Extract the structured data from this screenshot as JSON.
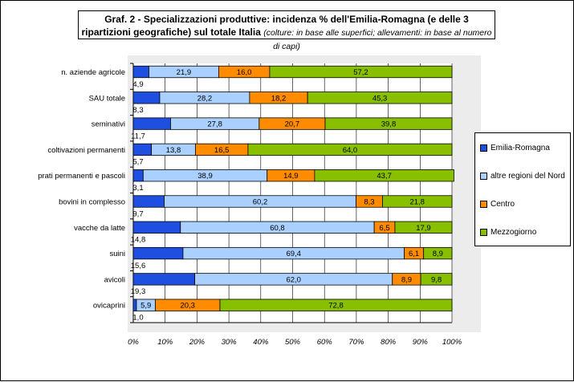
{
  "title": {
    "main": "Graf. 2 - Specializzazioni produttive: incidenza % dell'Emilia-Romagna (e delle 3 ripartizioni geografiche) sul totale Italia",
    "note": "(colture: in base alle superfici; allevamenti: in base al numero di capi)"
  },
  "colors": {
    "emilia_romagna": "#1f4fe0",
    "nord": "#a9d0ff",
    "centro": "#ff8c00",
    "mezzogiorno": "#88c000"
  },
  "chart_data": {
    "type": "bar",
    "orientation": "horizontal",
    "stacked": true,
    "categories": [
      "n. aziende agricole",
      "SAU totale",
      "seminativi",
      "coltivazioni permanenti",
      "prati permanenti e pascoli",
      "bovini in complesso",
      "vacche da latte",
      "suini",
      "avicoli",
      "ovicaprini"
    ],
    "category_bar_labels": [
      "4,9",
      "8,3",
      "11,7",
      "5,7",
      "3,1",
      "9,7",
      "14,8",
      "15,6",
      "19,3",
      "1,0"
    ],
    "series": [
      {
        "name": "Emilia-Romagna",
        "values": [
          4.9,
          8.3,
          11.7,
          5.7,
          3.1,
          9.7,
          14.8,
          15.6,
          19.3,
          1.0
        ]
      },
      {
        "name": "altre regioni del Nord",
        "values": [
          21.9,
          28.2,
          27.8,
          13.8,
          38.9,
          60.2,
          60.8,
          69.4,
          62.0,
          5.9
        ],
        "labels": [
          "21,9",
          "28,2",
          "27,8",
          "13,8",
          "38,9",
          "60,2",
          "60,8",
          "69,4",
          "62,0",
          "5,9"
        ]
      },
      {
        "name": "Centro",
        "values": [
          16.0,
          18.2,
          20.7,
          16.5,
          14.9,
          8.3,
          6.5,
          6.1,
          8.9,
          20.3
        ],
        "labels": [
          "16,0",
          "18,2",
          "20,7",
          "16,5",
          "14,9",
          "8,3",
          "6,5",
          "6,1",
          "8,9",
          "20,3"
        ]
      },
      {
        "name": "Mezzogiorno",
        "values": [
          57.2,
          45.3,
          39.8,
          64.0,
          43.7,
          21.8,
          17.9,
          8.9,
          9.8,
          72.8
        ],
        "labels": [
          "57,2",
          "45,3",
          "39,8",
          "64,0",
          "43,7",
          "21,8",
          "17,9",
          "8,9",
          "9,8",
          "72,8"
        ]
      }
    ],
    "xlim": [
      0,
      100
    ],
    "xticks": [
      "0%",
      "10%",
      "20%",
      "30%",
      "40%",
      "50%",
      "60%",
      "70%",
      "80%",
      "90%",
      "100%"
    ],
    "grid": true,
    "legend_position": "right"
  }
}
